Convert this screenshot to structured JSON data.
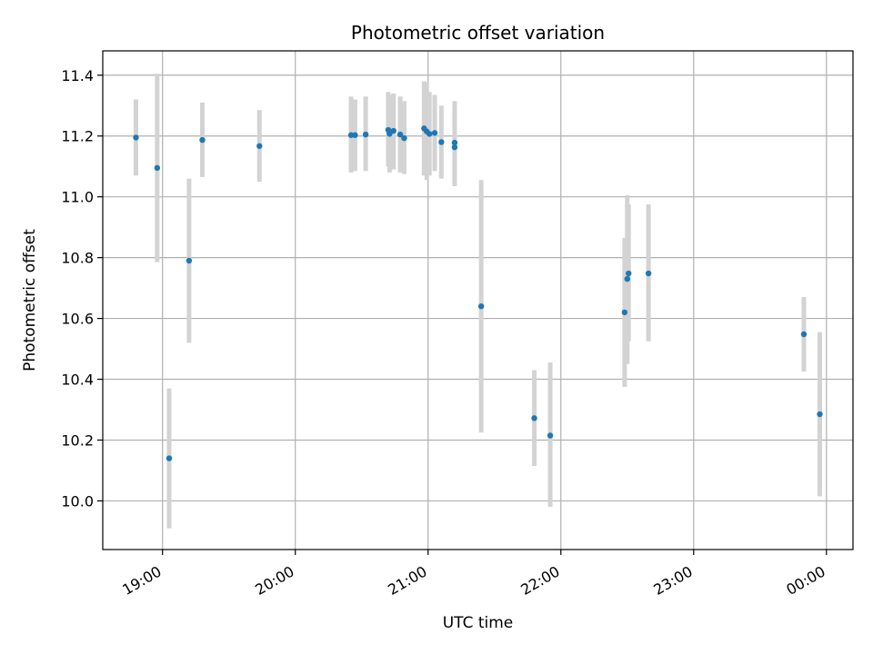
{
  "chart_data": {
    "type": "scatter",
    "title": "Photometric offset variation",
    "xlabel": "UTC time",
    "ylabel": "Photometric offset",
    "grid": true,
    "x_unit": "hours since 19:00 UTC",
    "xlim": [
      -0.45,
      5.2
    ],
    "ylim": [
      9.84,
      11.48
    ],
    "x_ticks": [
      {
        "value": 0,
        "label": "19:00"
      },
      {
        "value": 1,
        "label": "20:00"
      },
      {
        "value": 2,
        "label": "21:00"
      },
      {
        "value": 3,
        "label": "22:00"
      },
      {
        "value": 4,
        "label": "23:00"
      },
      {
        "value": 5,
        "label": "00:00"
      }
    ],
    "y_ticks": [
      {
        "value": 10.0,
        "label": "10.0"
      },
      {
        "value": 10.2,
        "label": "10.2"
      },
      {
        "value": 10.4,
        "label": "10.4"
      },
      {
        "value": 10.6,
        "label": "10.6"
      },
      {
        "value": 10.8,
        "label": "10.8"
      },
      {
        "value": 11.0,
        "label": "11.0"
      },
      {
        "value": 11.2,
        "label": "11.2"
      },
      {
        "value": 11.4,
        "label": "11.4"
      }
    ],
    "colors": {
      "point": "#1f77b4",
      "error_bar": "#d3d3d3",
      "grid": "#b0b0b0"
    },
    "series": [
      {
        "name": "Photometric offset",
        "points": [
          {
            "x": -0.2,
            "y": 11.195,
            "ylo": 11.07,
            "yhi": 11.32
          },
          {
            "x": -0.04,
            "y": 11.095,
            "ylo": 10.785,
            "yhi": 11.405
          },
          {
            "x": 0.05,
            "y": 10.14,
            "ylo": 9.91,
            "yhi": 10.37
          },
          {
            "x": 0.2,
            "y": 10.79,
            "ylo": 10.52,
            "yhi": 11.06
          },
          {
            "x": 0.3,
            "y": 11.187,
            "ylo": 11.065,
            "yhi": 11.31
          },
          {
            "x": 0.73,
            "y": 11.167,
            "ylo": 11.05,
            "yhi": 11.285
          },
          {
            "x": 1.42,
            "y": 11.203,
            "ylo": 11.08,
            "yhi": 11.33
          },
          {
            "x": 1.45,
            "y": 11.203,
            "ylo": 11.085,
            "yhi": 11.32
          },
          {
            "x": 1.53,
            "y": 11.205,
            "ylo": 11.085,
            "yhi": 11.33
          },
          {
            "x": 1.7,
            "y": 11.22,
            "ylo": 11.1,
            "yhi": 11.345
          },
          {
            "x": 1.71,
            "y": 11.207,
            "ylo": 11.08,
            "yhi": 11.335
          },
          {
            "x": 1.74,
            "y": 11.217,
            "ylo": 11.09,
            "yhi": 11.34
          },
          {
            "x": 1.79,
            "y": 11.205,
            "ylo": 11.08,
            "yhi": 11.33
          },
          {
            "x": 1.82,
            "y": 11.193,
            "ylo": 11.075,
            "yhi": 11.315
          },
          {
            "x": 1.97,
            "y": 11.225,
            "ylo": 11.07,
            "yhi": 11.38
          },
          {
            "x": 1.99,
            "y": 11.215,
            "ylo": 11.055,
            "yhi": 11.375
          },
          {
            "x": 2.01,
            "y": 11.207,
            "ylo": 11.07,
            "yhi": 11.345
          },
          {
            "x": 2.05,
            "y": 11.21,
            "ylo": 11.085,
            "yhi": 11.335
          },
          {
            "x": 2.1,
            "y": 11.18,
            "ylo": 11.06,
            "yhi": 11.3
          },
          {
            "x": 2.2,
            "y": 11.178,
            "ylo": 11.045,
            "yhi": 11.315
          },
          {
            "x": 2.2,
            "y": 11.163,
            "ylo": 11.035,
            "yhi": 11.29
          },
          {
            "x": 2.4,
            "y": 10.64,
            "ylo": 10.225,
            "yhi": 11.055
          },
          {
            "x": 2.8,
            "y": 10.272,
            "ylo": 10.115,
            "yhi": 10.43
          },
          {
            "x": 2.92,
            "y": 10.215,
            "ylo": 9.98,
            "yhi": 10.455
          },
          {
            "x": 3.48,
            "y": 10.62,
            "ylo": 10.375,
            "yhi": 10.865
          },
          {
            "x": 3.5,
            "y": 10.73,
            "ylo": 10.45,
            "yhi": 11.005
          },
          {
            "x": 3.51,
            "y": 10.748,
            "ylo": 10.525,
            "yhi": 10.975
          },
          {
            "x": 3.66,
            "y": 10.748,
            "ylo": 10.525,
            "yhi": 10.975
          },
          {
            "x": 4.83,
            "y": 10.548,
            "ylo": 10.425,
            "yhi": 10.67
          },
          {
            "x": 4.95,
            "y": 10.285,
            "ylo": 10.015,
            "yhi": 10.555
          }
        ]
      }
    ]
  }
}
